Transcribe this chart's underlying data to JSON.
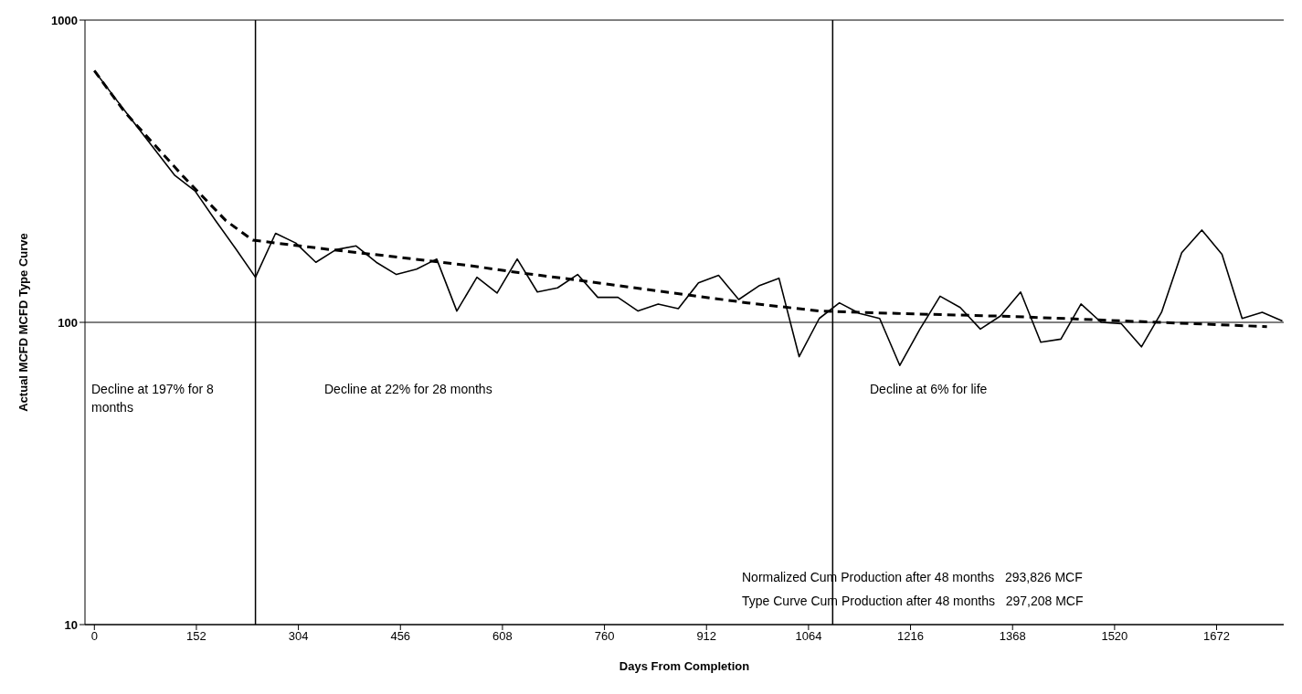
{
  "chart_data": {
    "type": "line",
    "xlabel": "Days From Completion",
    "ylabel": "Actual MCFD          MCFD Type Curve",
    "xlim": [
      -14,
      1772
    ],
    "xticks": [
      0,
      152,
      304,
      456,
      608,
      760,
      912,
      1064,
      1216,
      1368,
      1520,
      1672
    ],
    "ylim": [
      10,
      1000
    ],
    "yticks": [
      10,
      100,
      1000
    ],
    "log": "y",
    "grid": "y",
    "legend": false,
    "marker": "none",
    "series": [
      {
        "color": "#000000",
        "line_style": "solid",
        "x": [
          0,
          30,
          60,
          90,
          120,
          150,
          180,
          210,
          240,
          270,
          300,
          330,
          360,
          390,
          420,
          450,
          480,
          510,
          540,
          570,
          600,
          630,
          660,
          690,
          720,
          750,
          780,
          810,
          840,
          870,
          900,
          930,
          960,
          990,
          1020,
          1050,
          1080,
          1110,
          1140,
          1170,
          1200,
          1230,
          1260,
          1290,
          1320,
          1350,
          1380,
          1410,
          1440,
          1470,
          1500,
          1530,
          1560,
          1590,
          1620,
          1650,
          1680,
          1710,
          1740,
          1770
        ],
        "values": [
          680,
          555,
          455,
          373,
          306,
          272,
          218,
          176,
          141,
          197,
          183,
          158,
          174,
          179,
          158,
          144,
          150,
          162,
          109,
          141,
          125,
          162,
          126,
          130,
          144,
          121,
          121,
          109,
          115,
          111,
          135,
          143,
          119,
          132,
          140,
          77,
          103,
          116,
          107,
          103,
          72,
          95,
          122,
          112,
          95,
          105,
          126,
          86,
          88,
          115,
          100,
          99,
          83,
          108,
          170,
          202,
          168,
          103,
          108,
          101
        ]
      },
      {
        "color": "#000000",
        "line_style": "dashed",
        "x": [
          0,
          45,
          133,
          196,
          236,
          352,
          445,
          560,
          632,
          720,
          863,
          973,
          1080,
          1196,
          1373,
          1552,
          1747
        ],
        "values": [
          680,
          497,
          303,
          217,
          187,
          174,
          165,
          154,
          146,
          138,
          125,
          116,
          109,
          107,
          104.5,
          100.7,
          96.8
        ]
      }
    ],
    "ref_lines": [
      {
        "axis": "x",
        "value": 240,
        "color": "#000000"
      },
      {
        "axis": "x",
        "value": 1100,
        "color": "#000000"
      }
    ],
    "annotations": [
      "Decline at 197% for 8 months",
      "Decline at 22% for 28 months",
      "Decline at 6% for life",
      "Normalized Cum Production after 48 months   293,826 MCF",
      "Type Curve Cum Production after 48 months   297,208 MCF"
    ]
  }
}
